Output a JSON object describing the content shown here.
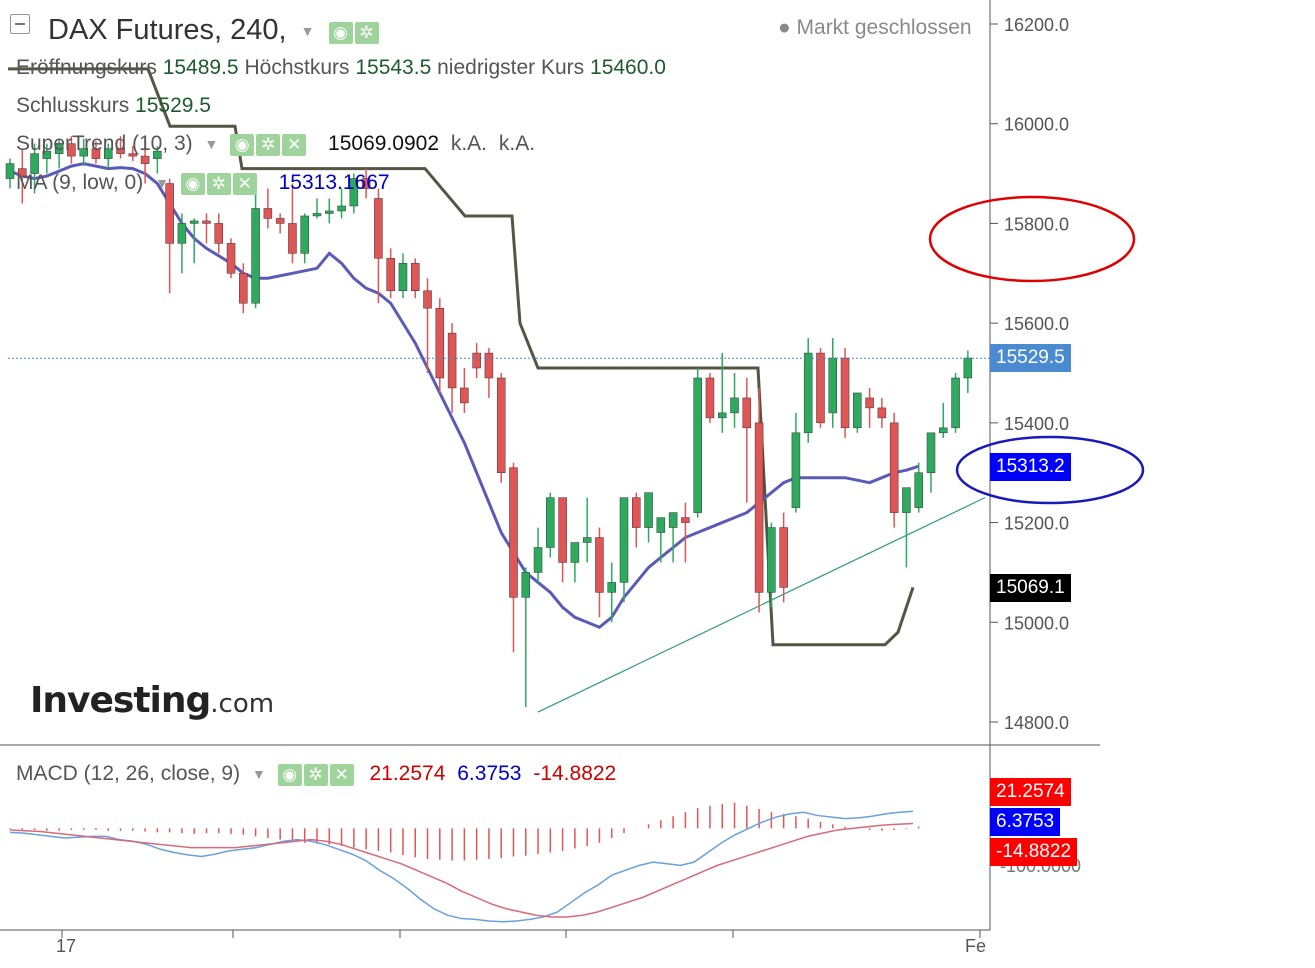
{
  "header": {
    "title": "DAX Futures, 240,",
    "status": "● Markt geschlossen"
  },
  "ohlc": {
    "open_label": "Eröffnungskurs",
    "open": "15489.5",
    "high_label": "Höchstkurs",
    "high": "15543.5",
    "low_label": "niedrigster Kurs",
    "low": "15460.0",
    "close_label": "Schlusskurs",
    "close": "15529.5"
  },
  "indicators": {
    "supertrend": {
      "name": "SuperTrend (10, 3)",
      "value": "15069.0902",
      "na1": "k.A.",
      "na2": "k.A."
    },
    "ma": {
      "name": "MA (9, low, 0)",
      "value": "15313.1667"
    },
    "macd": {
      "name": "MACD (12, 26, close, 9)",
      "v1": "21.2574",
      "v2": "6.3753",
      "v3": "-14.8822"
    }
  },
  "icons": {
    "eye": "eye-icon",
    "settings": "gear-icon",
    "close": "close-icon",
    "caret": "chevron-down-icon"
  },
  "logo": {
    "main": "Investing",
    "suffix": ".com"
  },
  "price_tags": {
    "last": "15529.5",
    "ma": "15313.2",
    "supertrend": "15069.1",
    "macd1": "21.2574",
    "macd2": "6.3753",
    "macd3": "-14.8822",
    "macd_axis": "-100.0000"
  },
  "x_axis": {
    "labels": [
      "17",
      "Fe"
    ]
  },
  "colors": {
    "up": "#2eaa5e",
    "down": "#e05555",
    "ma": "#5a5ab8",
    "supertrend": "#555544",
    "trendline": "#2e9e79",
    "last_price": "#4a8ad0",
    "ma_tag": "#0000ff",
    "supertrend_tag": "#000000",
    "macd_red": "#ff0000",
    "macd_blue": "#0000ff",
    "annotation_red": "#e00000",
    "annotation_blue": "#1a1aba"
  },
  "chart_data": {
    "type": "candlestick",
    "y_ticks": [
      "16200.0",
      "16000.0",
      "15800.0",
      "15600.0",
      "15400.0",
      "15200.0",
      "15000.0",
      "14800.0"
    ],
    "y_ticks_values": [
      16200,
      16000,
      15800,
      15600,
      15400,
      15200,
      15000,
      14800
    ],
    "ylim": [
      14750,
      16245
    ],
    "candles": [
      {
        "o": 15890,
        "h": 15930,
        "l": 15870,
        "c": 15920
      },
      {
        "o": 15910,
        "h": 15950,
        "l": 15840,
        "c": 15895
      },
      {
        "o": 15900,
        "h": 15960,
        "l": 15860,
        "c": 15940
      },
      {
        "o": 15930,
        "h": 15960,
        "l": 15900,
        "c": 15945
      },
      {
        "o": 15940,
        "h": 15970,
        "l": 15910,
        "c": 15960
      },
      {
        "o": 15960,
        "h": 15975,
        "l": 15920,
        "c": 15935
      },
      {
        "o": 15935,
        "h": 15970,
        "l": 15915,
        "c": 15950
      },
      {
        "o": 15950,
        "h": 15965,
        "l": 15920,
        "c": 15930
      },
      {
        "o": 15930,
        "h": 15960,
        "l": 15910,
        "c": 15950
      },
      {
        "o": 15950,
        "h": 15975,
        "l": 15930,
        "c": 15940
      },
      {
        "o": 15940,
        "h": 15955,
        "l": 15925,
        "c": 15935
      },
      {
        "o": 15935,
        "h": 15970,
        "l": 15880,
        "c": 15920
      },
      {
        "o": 15930,
        "h": 15955,
        "l": 15900,
        "c": 15945
      },
      {
        "o": 15880,
        "h": 15890,
        "l": 15660,
        "c": 15760
      },
      {
        "o": 15760,
        "h": 15820,
        "l": 15700,
        "c": 15800
      },
      {
        "o": 15800,
        "h": 15810,
        "l": 15720,
        "c": 15805
      },
      {
        "o": 15805,
        "h": 15820,
        "l": 15760,
        "c": 15800
      },
      {
        "o": 15800,
        "h": 15820,
        "l": 15740,
        "c": 15760
      },
      {
        "o": 15760,
        "h": 15770,
        "l": 15690,
        "c": 15700
      },
      {
        "o": 15700,
        "h": 15720,
        "l": 15620,
        "c": 15640
      },
      {
        "o": 15640,
        "h": 15870,
        "l": 15630,
        "c": 15830
      },
      {
        "o": 15830,
        "h": 15870,
        "l": 15790,
        "c": 15810
      },
      {
        "o": 15810,
        "h": 15820,
        "l": 15780,
        "c": 15800
      },
      {
        "o": 15800,
        "h": 15880,
        "l": 15720,
        "c": 15740
      },
      {
        "o": 15740,
        "h": 15820,
        "l": 15720,
        "c": 15815
      },
      {
        "o": 15815,
        "h": 15850,
        "l": 15810,
        "c": 15820
      },
      {
        "o": 15820,
        "h": 15850,
        "l": 15800,
        "c": 15825
      },
      {
        "o": 15825,
        "h": 15870,
        "l": 15810,
        "c": 15835
      },
      {
        "o": 15835,
        "h": 15900,
        "l": 15820,
        "c": 15890
      },
      {
        "o": 15890,
        "h": 15910,
        "l": 15850,
        "c": 15870
      },
      {
        "o": 15850,
        "h": 15870,
        "l": 15640,
        "c": 15730
      },
      {
        "o": 15730,
        "h": 15750,
        "l": 15650,
        "c": 15665
      },
      {
        "o": 15665,
        "h": 15740,
        "l": 15650,
        "c": 15720
      },
      {
        "o": 15720,
        "h": 15730,
        "l": 15650,
        "c": 15665
      },
      {
        "o": 15665,
        "h": 15690,
        "l": 15500,
        "c": 15630
      },
      {
        "o": 15630,
        "h": 15650,
        "l": 15460,
        "c": 15490
      },
      {
        "o": 15580,
        "h": 15600,
        "l": 15420,
        "c": 15470
      },
      {
        "o": 15470,
        "h": 15510,
        "l": 15420,
        "c": 15440
      },
      {
        "o": 15540,
        "h": 15560,
        "l": 15490,
        "c": 15510
      },
      {
        "o": 15540,
        "h": 15550,
        "l": 15450,
        "c": 15490
      },
      {
        "o": 15490,
        "h": 15500,
        "l": 15280,
        "c": 15300
      },
      {
        "o": 15310,
        "h": 15320,
        "l": 14940,
        "c": 15050
      },
      {
        "o": 15050,
        "h": 15110,
        "l": 14830,
        "c": 15100
      },
      {
        "o": 15100,
        "h": 15190,
        "l": 15080,
        "c": 15150
      },
      {
        "o": 15150,
        "h": 15260,
        "l": 15130,
        "c": 15250
      },
      {
        "o": 15250,
        "h": 15250,
        "l": 15080,
        "c": 15120
      },
      {
        "o": 15120,
        "h": 15160,
        "l": 15080,
        "c": 15160
      },
      {
        "o": 15160,
        "h": 15250,
        "l": 15120,
        "c": 15170
      },
      {
        "o": 15170,
        "h": 15190,
        "l": 15010,
        "c": 15060
      },
      {
        "o": 15060,
        "h": 15120,
        "l": 15000,
        "c": 15080
      },
      {
        "o": 15080,
        "h": 15250,
        "l": 15040,
        "c": 15250
      },
      {
        "o": 15250,
        "h": 15260,
        "l": 15150,
        "c": 15190
      },
      {
        "o": 15190,
        "h": 15260,
        "l": 15160,
        "c": 15260
      },
      {
        "o": 15180,
        "h": 15210,
        "l": 15120,
        "c": 15210
      },
      {
        "o": 15190,
        "h": 15220,
        "l": 15120,
        "c": 15220
      },
      {
        "o": 15210,
        "h": 15240,
        "l": 15120,
        "c": 15200
      },
      {
        "o": 15220,
        "h": 15510,
        "l": 15210,
        "c": 15490
      },
      {
        "o": 15490,
        "h": 15500,
        "l": 15400,
        "c": 15410
      },
      {
        "o": 15410,
        "h": 15540,
        "l": 15380,
        "c": 15420
      },
      {
        "o": 15420,
        "h": 15500,
        "l": 15390,
        "c": 15450
      },
      {
        "o": 15450,
        "h": 15490,
        "l": 15240,
        "c": 15390
      },
      {
        "o": 15400,
        "h": 15470,
        "l": 15020,
        "c": 15060
      },
      {
        "o": 15060,
        "h": 15200,
        "l": 15030,
        "c": 15190
      },
      {
        "o": 15190,
        "h": 15220,
        "l": 15040,
        "c": 15070
      },
      {
        "o": 15230,
        "h": 15420,
        "l": 15220,
        "c": 15380
      },
      {
        "o": 15380,
        "h": 15570,
        "l": 15360,
        "c": 15540
      },
      {
        "o": 15540,
        "h": 15550,
        "l": 15390,
        "c": 15400
      },
      {
        "o": 15420,
        "h": 15570,
        "l": 15390,
        "c": 15530
      },
      {
        "o": 15530,
        "h": 15550,
        "l": 15370,
        "c": 15390
      },
      {
        "o": 15390,
        "h": 15460,
        "l": 15380,
        "c": 15460
      },
      {
        "o": 15450,
        "h": 15470,
        "l": 15390,
        "c": 15430
      },
      {
        "o": 15430,
        "h": 15450,
        "l": 15390,
        "c": 15410
      },
      {
        "o": 15400,
        "h": 15420,
        "l": 15190,
        "c": 15220
      },
      {
        "o": 15220,
        "h": 15270,
        "l": 15110,
        "c": 15270
      },
      {
        "o": 15230,
        "h": 15320,
        "l": 15220,
        "c": 15300
      },
      {
        "o": 15300,
        "h": 15380,
        "l": 15260,
        "c": 15380
      },
      {
        "o": 15380,
        "h": 15440,
        "l": 15370,
        "c": 15390
      },
      {
        "o": 15390,
        "h": 15500,
        "l": 15380,
        "c": 15490
      },
      {
        "o": 15490,
        "h": 15545,
        "l": 15460,
        "c": 15530
      }
    ],
    "ma_series": [
      15905,
      15895,
      15890,
      15895,
      15905,
      15915,
      15920,
      15915,
      15910,
      15912,
      15910,
      15900,
      15880,
      15840,
      15800,
      15770,
      15750,
      15735,
      15720,
      15700,
      15690,
      15690,
      15695,
      15700,
      15705,
      15710,
      15740,
      15720,
      15690,
      15670,
      15660,
      15640,
      15600,
      15560,
      15510,
      15460,
      15410,
      15360,
      15300,
      15240,
      15180,
      15140,
      15100,
      15080,
      15060,
      15030,
      15010,
      15000,
      14990,
      15010,
      15050,
      15080,
      15110,
      15130,
      15150,
      15170,
      15180,
      15190,
      15200,
      15210,
      15220,
      15240,
      15260,
      15280,
      15290,
      15290,
      15290,
      15290,
      15290,
      15285,
      15280,
      15290,
      15300,
      15305,
      15313
    ],
    "supertrend_series": [
      [
        8,
        16110
      ],
      [
        148,
        16110
      ],
      [
        170,
        15995
      ],
      [
        235,
        15995
      ],
      [
        242,
        15910
      ],
      [
        425,
        15910
      ],
      [
        465,
        15815
      ],
      [
        512,
        15815
      ],
      [
        520,
        15600
      ],
      [
        538,
        15510
      ],
      [
        758,
        15510
      ],
      [
        773,
        14955
      ],
      [
        885,
        14955
      ],
      [
        898,
        14980
      ],
      [
        913,
        15070
      ]
    ],
    "trendline": [
      [
        538,
        14820
      ],
      [
        985,
        15250
      ]
    ],
    "last_price": 15529.5,
    "macd": {
      "ylim": [
        -120,
        60
      ],
      "histogram": [
        -1,
        -2,
        -2,
        -3,
        -3,
        -2,
        -2,
        -2,
        -3,
        -3,
        -3,
        -4,
        -5,
        -5,
        -6,
        -7,
        -6,
        -6,
        -7,
        -8,
        -10,
        -12,
        -14,
        -16,
        -18,
        -19,
        -20,
        -22,
        -24,
        -26,
        -28,
        -30,
        -33,
        -36,
        -38,
        -39,
        -40,
        -40,
        -39,
        -38,
        -37,
        -35,
        -34,
        -32,
        -30,
        -28,
        -25,
        -22,
        -18,
        -12,
        -6,
        0,
        5,
        10,
        15,
        20,
        25,
        28,
        30,
        32,
        28,
        24,
        20,
        18,
        15,
        12,
        8,
        5,
        2,
        0,
        -2,
        -3,
        -2,
        -1,
        2
      ],
      "macd_line": [
        -5,
        -6,
        -8,
        -10,
        -12,
        -11,
        -10,
        -10,
        -14,
        -16,
        -20,
        -26,
        -30,
        -33,
        -35,
        -32,
        -28,
        -26,
        -24,
        -20,
        -16,
        -14,
        -16,
        -20,
        -26,
        -32,
        -40,
        -52,
        -62,
        -74,
        -88,
        -100,
        -108,
        -112,
        -113,
        -115,
        -116,
        -115,
        -113,
        -110,
        -104,
        -92,
        -80,
        -70,
        -58,
        -52,
        -46,
        -42,
        -44,
        -46,
        -42,
        -30,
        -18,
        -8,
        0,
        8,
        14,
        18,
        20,
        16,
        14,
        12,
        13,
        15,
        18,
        20,
        21
      ],
      "signal_line": [
        -2,
        -3,
        -4,
        -6,
        -8,
        -10,
        -12,
        -14,
        -16,
        -18,
        -20,
        -22,
        -24,
        -24,
        -24,
        -24,
        -22,
        -20,
        -18,
        -16,
        -14,
        -16,
        -20,
        -26,
        -32,
        -38,
        -44,
        -52,
        -60,
        -68,
        -78,
        -86,
        -94,
        -100,
        -104,
        -108,
        -110,
        -110,
        -108,
        -104,
        -98,
        -92,
        -86,
        -78,
        -70,
        -62,
        -54,
        -46,
        -40,
        -34,
        -28,
        -22,
        -16,
        -10,
        -6,
        -2,
        0,
        2,
        4,
        5,
        6
      ]
    }
  }
}
